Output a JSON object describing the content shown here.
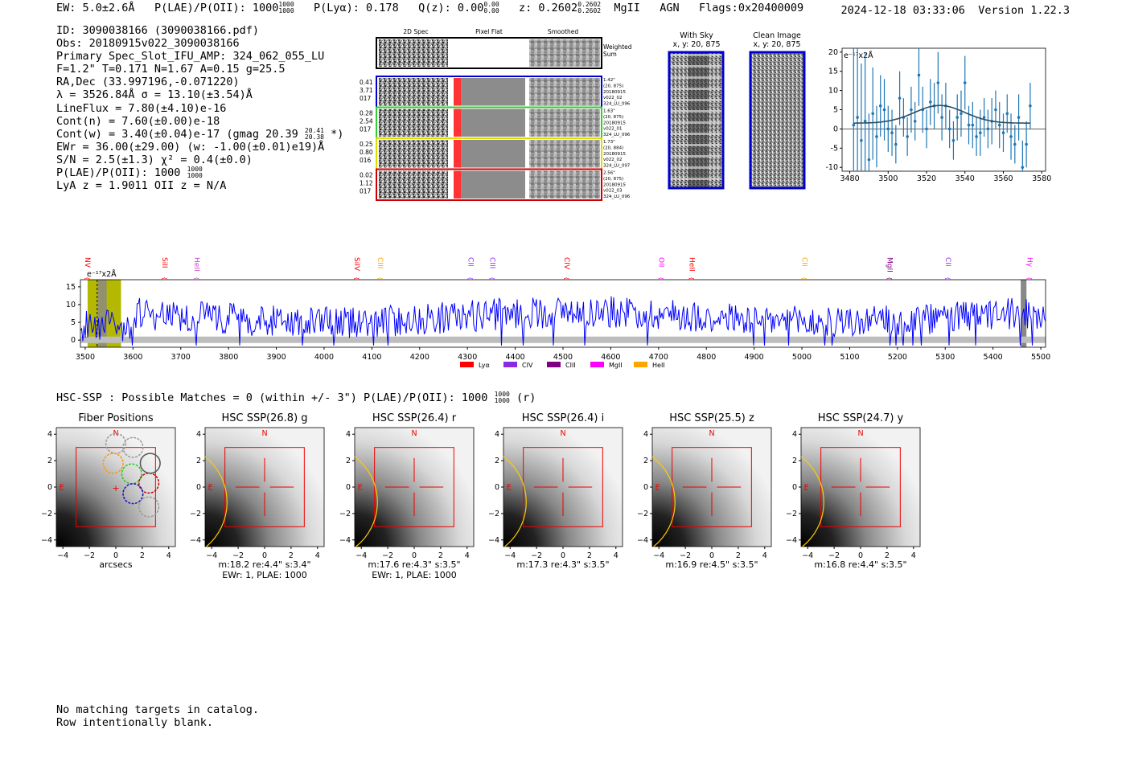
{
  "header": {
    "ew": "EW: 5.0±2.6Å",
    "plae_label": "P(LAE)/P(OII): 1000",
    "plae_hi": "1000",
    "plae_lo": "1000",
    "plya": "P(Lyα): 0.178",
    "qz_label": "Q(z): 0.00",
    "qz_hi": "0.00",
    "qz_lo": "0.00",
    "z_label": "z: 0.2602",
    "z_hi": "0.2602",
    "z_lo": "0.2602",
    "line": "MgII",
    "agn": "AGN",
    "flags": "Flags:0x20400009",
    "timestamp": "2024-12-18 03:33:06",
    "version": "Version 1.22.3"
  },
  "info": {
    "id": "ID: 3090038166 (3090038166.pdf)",
    "obs": "Obs: 20180915v022_3090038166",
    "primary": "Primary Spec_Slot_IFU_AMP: 324_062_055_LU",
    "fit": "F=1.2\"  T=0.171  N=1.67  A=0.15  g=25.5",
    "radec": "RA,Dec (33.997196,-0.071220)",
    "lambda": "λ = 3526.84Å  σ = 13.10(±3.54)Å",
    "lineflux": "LineFlux = 7.80(±4.10)e-16",
    "contn": "Cont(n) = 7.60(±0.00)e-18",
    "contw": "Cont(w) = 3.40(±0.04)e-17 (gmag 20.39",
    "contw_hi": "20.41",
    "contw_lo": "20.38",
    "contw_end": "*)",
    "ewr": "EWr = 36.00(±29.00) (w: -1.00(±0.01)e19)Å",
    "sn": "S/N = 2.5(±1.3)  χ² = 0.4(±0.0)",
    "plae": "P(LAE)/P(OII): 1000",
    "plae_hi": "1000",
    "plae_lo": "1000",
    "lyaz": "LyA z = 1.9011  OII z = N/A"
  },
  "spectra_panel": {
    "headers": [
      "2D Spec",
      "Pixel Flat",
      "Smoothed"
    ],
    "weighted_label_1": "Weighted",
    "weighted_label_2": "Sum",
    "rows": [
      {
        "color": "#0000cc",
        "left": [
          "0.41",
          "3.71",
          "017"
        ],
        "right": [
          "1.42\"",
          "(20, 875)",
          "20180915",
          "v022_02",
          "324_LU_096"
        ]
      },
      {
        "color": "#33cc33",
        "left": [
          "0.28",
          "2.54",
          "017"
        ],
        "right": [
          "1.63\"",
          "(20, 875)",
          "20180915",
          "v022_01",
          "324_LU_096"
        ]
      },
      {
        "color": "#dddd00",
        "left": [
          "0.25",
          "0.80",
          "016"
        ],
        "right": [
          "1.73\"",
          "(20, 884)",
          "20180915",
          "v022_02",
          "324_LU_097"
        ]
      },
      {
        "color": "#cc0000",
        "left": [
          "0.02",
          "1.12",
          "017"
        ],
        "right": [
          "2.56\"",
          "(20, 875)",
          "20180915",
          "v022_03",
          "324_LU_096"
        ]
      }
    ]
  },
  "sky_panel": {
    "title": "With Sky",
    "subtitle": "x, y: 20, 875"
  },
  "clean_panel": {
    "title": "Clean Image",
    "subtitle": "x, y: 20, 875"
  },
  "chart_data": [
    {
      "type": "scatter",
      "name": "line-fit",
      "title": "",
      "ylabel_note": "e⁻¹⁷x2Å",
      "xlim": [
        3476,
        3582
      ],
      "ylim": [
        -11,
        21
      ],
      "xticks": [
        3480,
        3500,
        3520,
        3540,
        3560,
        3580
      ],
      "yticks": [
        -10,
        -5,
        0,
        5,
        10,
        15,
        20
      ],
      "x": [
        3482,
        3484,
        3486,
        3488,
        3490,
        3492,
        3494,
        3496,
        3498,
        3500,
        3502,
        3504,
        3506,
        3508,
        3510,
        3512,
        3514,
        3516,
        3518,
        3520,
        3522,
        3524,
        3526,
        3528,
        3530,
        3532,
        3534,
        3536,
        3538,
        3540,
        3542,
        3544,
        3546,
        3548,
        3550,
        3552,
        3554,
        3556,
        3558,
        3560,
        3562,
        3564,
        3566,
        3568,
        3570,
        3572,
        3574
      ],
      "y": [
        1,
        3,
        -3,
        2,
        -8,
        4,
        -2,
        6,
        5,
        0,
        -1,
        -4,
        8,
        3,
        -2,
        5,
        2,
        14,
        5,
        0,
        7,
        6,
        12,
        3,
        6,
        0,
        -3,
        3,
        4,
        12,
        1,
        1,
        -2,
        -1,
        3,
        0,
        2,
        5,
        1,
        -1,
        4,
        -2,
        -4,
        3,
        -10,
        -4,
        6
      ],
      "err": [
        20,
        18,
        20,
        18,
        12,
        12,
        8,
        8,
        8,
        6,
        6,
        5,
        7,
        5,
        5,
        6,
        5,
        8,
        6,
        5,
        6,
        6,
        8,
        6,
        6,
        5,
        5,
        6,
        6,
        7,
        5,
        6,
        5,
        6,
        5,
        5,
        6,
        5,
        6,
        5,
        5,
        6,
        5,
        6,
        7,
        6,
        6
      ],
      "fit": {
        "type": "gaussian",
        "center": 3526.84,
        "sigma": 13.1,
        "amplitude": 4.6,
        "baseline": 1.5
      }
    },
    {
      "type": "line",
      "name": "full-spectrum",
      "xlim": [
        3490,
        5510
      ],
      "ylim": [
        -2,
        17
      ],
      "xticks": [
        3500,
        3600,
        3700,
        3800,
        3900,
        4000,
        4100,
        4200,
        4300,
        4400,
        4500,
        4600,
        4700,
        4800,
        4900,
        5000,
        5100,
        5200,
        5300,
        5400,
        5500
      ],
      "yticks": [
        0,
        5,
        10,
        15
      ],
      "ylabel_note": "e⁻¹⁷x2Å",
      "seed": 20180915,
      "n_points": 800,
      "line_markers": [
        {
          "label": "NV",
          "wave": 3495,
          "color": "#ff0000"
        },
        {
          "label": "SiII",
          "wave": 3657,
          "color": "#ff0000"
        },
        {
          "label": "HeII",
          "wave": 3724,
          "color": "#cc44cc"
        },
        {
          "label": "SiIV",
          "wave": 4059,
          "color": "#ff0000"
        },
        {
          "label": "CIII",
          "wave": 4108,
          "color": "#ffa500"
        },
        {
          "label": "CII",
          "wave": 4297,
          "color": "#9b30ff"
        },
        {
          "label": "CIII",
          "wave": 4343,
          "color": "#9b30ff"
        },
        {
          "label": "CIV",
          "wave": 4498,
          "color": "#ff0000"
        },
        {
          "label": "OII",
          "wave": 4696,
          "color": "#ff00ff"
        },
        {
          "label": "HeII",
          "wave": 4760,
          "color": "#ff0000"
        },
        {
          "label": "CII",
          "wave": 4996,
          "color": "#ffa500"
        },
        {
          "label": "MgII",
          "wave": 5174,
          "color": "#800080"
        },
        {
          "label": "CII",
          "wave": 5296,
          "color": "#9b30ff"
        },
        {
          "label": "Hγ",
          "wave": 5467,
          "color": "#ff00ff"
        }
      ],
      "legend": [
        {
          "label": "Lyα",
          "color": "#ff0000"
        },
        {
          "label": "CIV",
          "color": "#8a2be2"
        },
        {
          "label": "CIII",
          "color": "#800080"
        },
        {
          "label": "MgII",
          "color": "#ff00ff"
        },
        {
          "label": "HeII",
          "color": "#ffa500"
        }
      ],
      "highlight_band": [
        3505,
        3575
      ],
      "mask_band": [
        3527,
        3545
      ],
      "mask_band_2": [
        5458,
        5470
      ]
    },
    {
      "type": "heatmap",
      "name": "cutouts",
      "xlim": [
        -4.5,
        4.5
      ],
      "ylim": [
        -4.5,
        4.5
      ],
      "ticks": [
        -4,
        -2,
        0,
        2,
        4
      ],
      "xlabel_first": "arcsecs"
    }
  ],
  "hsc": {
    "title_prefix": "HSC-SSP : Possible Matches = 0 (within +/- 3\")  P(LAE)/P(OII): 1000",
    "title_hi": "1000",
    "title_lo": "1000",
    "title_suffix": "(r)",
    "compass_n": "N",
    "compass_e": "E",
    "cutouts": [
      {
        "title": "Fiber Positions",
        "stats": "",
        "stats2": ""
      },
      {
        "title": "HSC SSP(26.8) g",
        "stats": "m:18.2  re:4.4\"  s:3.4\"",
        "stats2": "EWr: 1, PLAE: 1000"
      },
      {
        "title": "HSC SSP(26.4) r",
        "stats": "m:17.6  re:4.3\"  s:3.5\"",
        "stats2": "EWr: 1, PLAE: 1000"
      },
      {
        "title": "HSC SSP(26.4) i",
        "stats": "m:17.3  re:4.3\"  s:3.5\"",
        "stats2": ""
      },
      {
        "title": "HSC SSP(25.5) z",
        "stats": "m:16.9  re:4.5\"  s:3.5\"",
        "stats2": ""
      },
      {
        "title": "HSC SSP(24.7) y",
        "stats": "m:16.8  re:4.4\"  s:3.5\"",
        "stats2": ""
      }
    ]
  },
  "footer": {
    "line1": "No matching targets in catalog.",
    "line2": "Row intentionally blank."
  },
  "colors": {
    "spectrum": "#0000ff",
    "fit_points": "#1f77b4",
    "fit_line": "#2f4f5f",
    "band": "#b5b800",
    "red": "#ff0000",
    "gold": "#ffcc00"
  }
}
